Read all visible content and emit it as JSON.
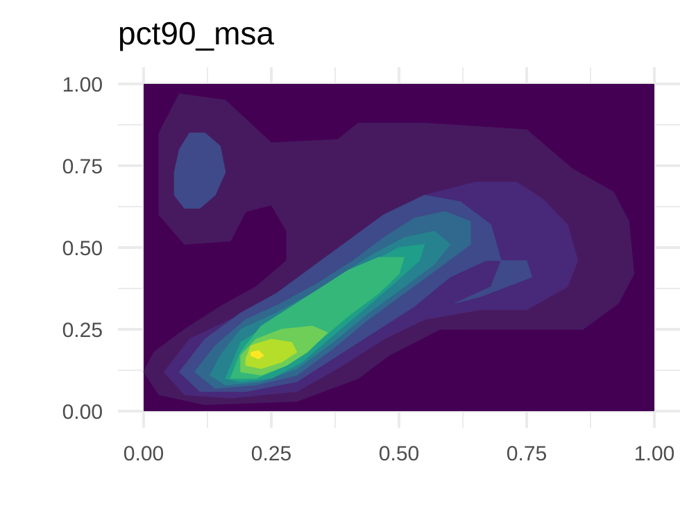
{
  "chart_data": {
    "type": "density_contour",
    "title": "pct90_msa",
    "xlabel": "",
    "ylabel": "",
    "xlim": [
      0,
      1
    ],
    "ylim": [
      0,
      1
    ],
    "x_ticks": [
      "0.00",
      "0.25",
      "0.50",
      "0.75",
      "1.00"
    ],
    "y_ticks": [
      "0.00",
      "0.25",
      "0.50",
      "0.75",
      "1.00"
    ],
    "grid": true,
    "colormap": "viridis",
    "levels": [
      {
        "level": 0,
        "color": "#440154",
        "polygon": [
          [
            0,
            0
          ],
          [
            1,
            0
          ],
          [
            1,
            1
          ],
          [
            0,
            1
          ]
        ]
      },
      {
        "level": 1,
        "color": "#471a5f",
        "polygon": [
          [
            0.0,
            0.12
          ],
          [
            0.03,
            0.05
          ],
          [
            0.12,
            0.02
          ],
          [
            0.3,
            0.03
          ],
          [
            0.42,
            0.1
          ],
          [
            0.48,
            0.17
          ],
          [
            0.58,
            0.25
          ],
          [
            0.75,
            0.25
          ],
          [
            0.86,
            0.25
          ],
          [
            0.93,
            0.33
          ],
          [
            0.96,
            0.42
          ],
          [
            0.95,
            0.58
          ],
          [
            0.92,
            0.67
          ],
          [
            0.84,
            0.74
          ],
          [
            0.75,
            0.86
          ],
          [
            0.55,
            0.88
          ],
          [
            0.42,
            0.88
          ],
          [
            0.38,
            0.83
          ],
          [
            0.25,
            0.82
          ],
          [
            0.16,
            0.95
          ],
          [
            0.07,
            0.97
          ],
          [
            0.03,
            0.85
          ],
          [
            0.03,
            0.6
          ],
          [
            0.08,
            0.51
          ],
          [
            0.17,
            0.52
          ],
          [
            0.2,
            0.61
          ],
          [
            0.25,
            0.63
          ],
          [
            0.28,
            0.55
          ],
          [
            0.28,
            0.46
          ],
          [
            0.22,
            0.38
          ],
          [
            0.15,
            0.32
          ],
          [
            0.08,
            0.25
          ],
          [
            0.02,
            0.18
          ]
        ]
      },
      {
        "level": 2,
        "color": "#482878",
        "polygon": [
          [
            0.04,
            0.12
          ],
          [
            0.08,
            0.05
          ],
          [
            0.17,
            0.04
          ],
          [
            0.3,
            0.06
          ],
          [
            0.39,
            0.14
          ],
          [
            0.47,
            0.22
          ],
          [
            0.55,
            0.28
          ],
          [
            0.66,
            0.31
          ],
          [
            0.75,
            0.31
          ],
          [
            0.83,
            0.38
          ],
          [
            0.85,
            0.46
          ],
          [
            0.83,
            0.57
          ],
          [
            0.78,
            0.65
          ],
          [
            0.73,
            0.7
          ],
          [
            0.65,
            0.7
          ],
          [
            0.55,
            0.66
          ],
          [
            0.47,
            0.58
          ],
          [
            0.4,
            0.5
          ],
          [
            0.33,
            0.42
          ],
          [
            0.26,
            0.35
          ],
          [
            0.17,
            0.28
          ],
          [
            0.09,
            0.22
          ]
        ]
      },
      {
        "level": 3,
        "color": "#3e4a89",
        "polygon": [
          [
            0.07,
            0.12
          ],
          [
            0.11,
            0.06
          ],
          [
            0.2,
            0.06
          ],
          [
            0.3,
            0.09
          ],
          [
            0.37,
            0.16
          ],
          [
            0.45,
            0.24
          ],
          [
            0.53,
            0.32
          ],
          [
            0.6,
            0.41
          ],
          [
            0.67,
            0.46
          ],
          [
            0.75,
            0.46
          ],
          [
            0.76,
            0.41
          ],
          [
            0.71,
            0.38
          ],
          [
            0.66,
            0.35
          ],
          [
            0.61,
            0.33
          ],
          [
            0.68,
            0.38
          ],
          [
            0.7,
            0.46
          ],
          [
            0.68,
            0.57
          ],
          [
            0.62,
            0.64
          ],
          [
            0.55,
            0.66
          ],
          [
            0.47,
            0.6
          ],
          [
            0.4,
            0.52
          ],
          [
            0.33,
            0.44
          ],
          [
            0.26,
            0.36
          ],
          [
            0.19,
            0.3
          ],
          [
            0.12,
            0.22
          ]
        ]
      },
      {
        "level": 4,
        "color": "#31688e",
        "polygon": [
          [
            0.1,
            0.12
          ],
          [
            0.14,
            0.07
          ],
          [
            0.22,
            0.08
          ],
          [
            0.3,
            0.11
          ],
          [
            0.37,
            0.19
          ],
          [
            0.44,
            0.28
          ],
          [
            0.51,
            0.36
          ],
          [
            0.58,
            0.44
          ],
          [
            0.64,
            0.51
          ],
          [
            0.64,
            0.58
          ],
          [
            0.59,
            0.61
          ],
          [
            0.53,
            0.59
          ],
          [
            0.47,
            0.53
          ],
          [
            0.41,
            0.46
          ],
          [
            0.34,
            0.39
          ],
          [
            0.27,
            0.33
          ],
          [
            0.2,
            0.28
          ],
          [
            0.14,
            0.2
          ]
        ]
      },
      {
        "level": 5,
        "color": "#26828e",
        "polygon": [
          [
            0.13,
            0.11
          ],
          [
            0.16,
            0.08
          ],
          [
            0.23,
            0.09
          ],
          [
            0.3,
            0.13
          ],
          [
            0.37,
            0.21
          ],
          [
            0.44,
            0.3
          ],
          [
            0.51,
            0.38
          ],
          [
            0.57,
            0.45
          ],
          [
            0.6,
            0.51
          ],
          [
            0.57,
            0.55
          ],
          [
            0.51,
            0.53
          ],
          [
            0.45,
            0.48
          ],
          [
            0.39,
            0.42
          ],
          [
            0.33,
            0.36
          ],
          [
            0.26,
            0.3
          ],
          [
            0.19,
            0.25
          ],
          [
            0.15,
            0.17
          ]
        ]
      },
      {
        "level": 6,
        "color": "#1f9e89",
        "polygon": [
          [
            0.16,
            0.1
          ],
          [
            0.19,
            0.09
          ],
          [
            0.25,
            0.1
          ],
          [
            0.31,
            0.15
          ],
          [
            0.37,
            0.23
          ],
          [
            0.43,
            0.31
          ],
          [
            0.49,
            0.39
          ],
          [
            0.54,
            0.46
          ],
          [
            0.55,
            0.51
          ],
          [
            0.5,
            0.5
          ],
          [
            0.44,
            0.45
          ],
          [
            0.37,
            0.38
          ],
          [
            0.31,
            0.32
          ],
          [
            0.25,
            0.27
          ],
          [
            0.19,
            0.21
          ]
        ]
      },
      {
        "level": 7,
        "color": "#35b779",
        "polygon": [
          [
            0.17,
            0.1
          ],
          [
            0.22,
            0.1
          ],
          [
            0.28,
            0.14
          ],
          [
            0.34,
            0.21
          ],
          [
            0.4,
            0.29
          ],
          [
            0.46,
            0.36
          ],
          [
            0.5,
            0.42
          ],
          [
            0.51,
            0.47
          ],
          [
            0.46,
            0.47
          ],
          [
            0.4,
            0.43
          ],
          [
            0.34,
            0.37
          ],
          [
            0.28,
            0.31
          ],
          [
            0.23,
            0.26
          ],
          [
            0.19,
            0.18
          ]
        ]
      },
      {
        "level": 8,
        "color": "#6ece58",
        "polygon": [
          [
            0.19,
            0.12
          ],
          [
            0.23,
            0.11
          ],
          [
            0.28,
            0.14
          ],
          [
            0.32,
            0.18
          ],
          [
            0.36,
            0.24
          ],
          [
            0.33,
            0.26
          ],
          [
            0.27,
            0.25
          ],
          [
            0.22,
            0.22
          ],
          [
            0.19,
            0.17
          ]
        ]
      },
      {
        "level": 9,
        "color": "#b5de2b",
        "polygon": [
          [
            0.2,
            0.14
          ],
          [
            0.23,
            0.13
          ],
          [
            0.27,
            0.15
          ],
          [
            0.3,
            0.18
          ],
          [
            0.29,
            0.21
          ],
          [
            0.25,
            0.22
          ],
          [
            0.21,
            0.2
          ],
          [
            0.2,
            0.16
          ]
        ]
      },
      {
        "level": 10,
        "color": "#fde725",
        "polygon": [
          [
            0.21,
            0.17
          ],
          [
            0.225,
            0.16
          ],
          [
            0.235,
            0.17
          ],
          [
            0.225,
            0.185
          ],
          [
            0.21,
            0.18
          ]
        ]
      },
      {
        "level": 3,
        "color": "#3e4a89",
        "polygon": [
          [
            0.06,
            0.66
          ],
          [
            0.08,
            0.62
          ],
          [
            0.11,
            0.62
          ],
          [
            0.14,
            0.66
          ],
          [
            0.16,
            0.73
          ],
          [
            0.15,
            0.81
          ],
          [
            0.12,
            0.85
          ],
          [
            0.09,
            0.85
          ],
          [
            0.07,
            0.8
          ],
          [
            0.06,
            0.73
          ]
        ]
      }
    ]
  }
}
